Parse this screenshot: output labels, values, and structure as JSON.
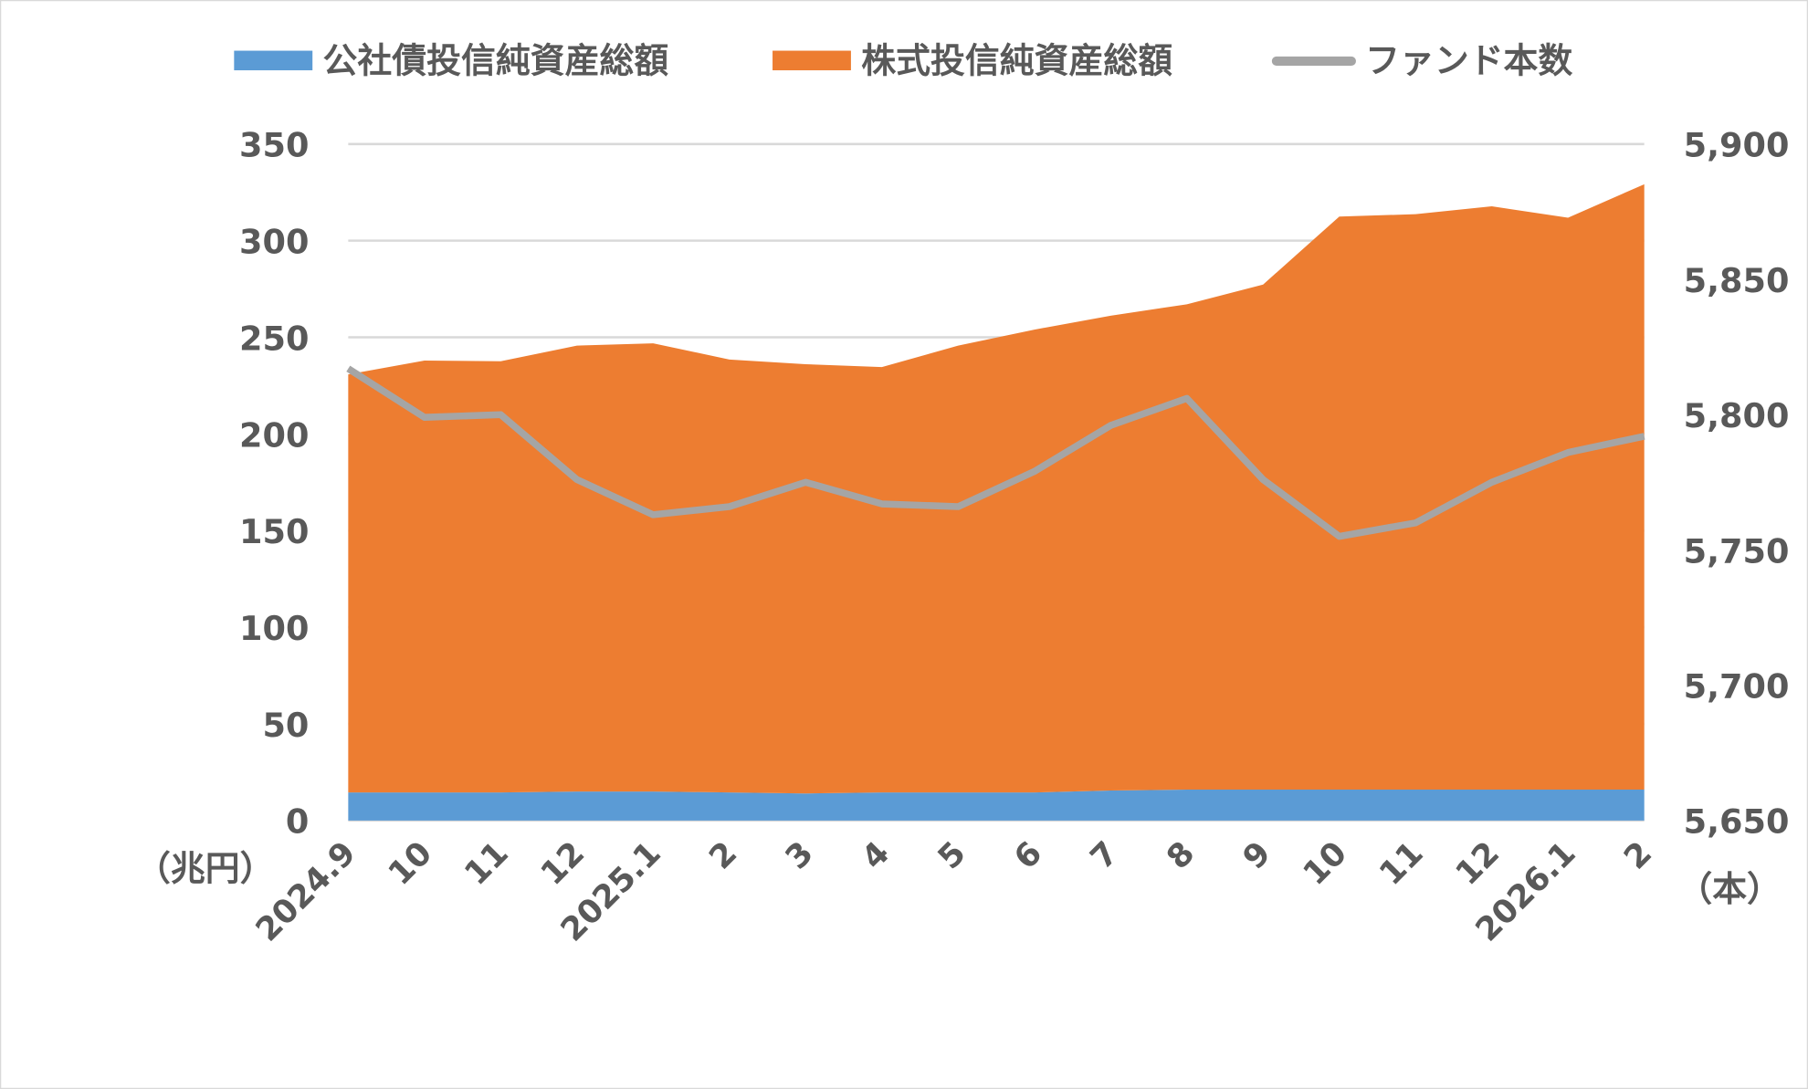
{
  "chart_data": {
    "type": "area",
    "stacked": true,
    "categories": [
      "2024.9",
      "10",
      "11",
      "12",
      "2025.1",
      "2",
      "3",
      "4",
      "5",
      "6",
      "7",
      "8",
      "9",
      "10",
      "11",
      "12",
      "2026.1",
      "2"
    ],
    "series": [
      {
        "name": "公社債投信純資産総額",
        "type": "area",
        "axis": "left",
        "color": "#5B9BD5",
        "values": [
          14.5,
          14.5,
          14.5,
          15,
          15,
          14.5,
          14,
          14.5,
          14.5,
          14.5,
          15.5,
          16,
          16,
          16,
          16,
          16,
          16,
          16
        ]
      },
      {
        "name": "株式投信純資産総額",
        "type": "area",
        "axis": "left",
        "color": "#ED7D31",
        "values": [
          216.3,
          223.5,
          223.1,
          230.7,
          231.9,
          224,
          222.1,
          220.1,
          231.2,
          239.5,
          245.7,
          251.1,
          261.3,
          296.5,
          297.7,
          301.8,
          295.9,
          313.2
        ]
      },
      {
        "name": "ファンド本数",
        "type": "line",
        "axis": "right",
        "color": "#A5A5A5",
        "values": [
          5817,
          5799,
          5800,
          5776,
          5763,
          5766,
          5775,
          5767,
          5766,
          5779,
          5796,
          5806,
          5776,
          5755,
          5760,
          5775,
          5786,
          5792
        ]
      }
    ],
    "left_axis": {
      "unit_label": "（兆円）",
      "ylim": [
        0,
        350
      ],
      "ticks": [
        "0",
        "50",
        "100",
        "150",
        "200",
        "250",
        "300",
        "350"
      ]
    },
    "right_axis": {
      "unit_label": "（本）",
      "ylim": [
        5650,
        5900
      ],
      "ticks": [
        "5,650",
        "5,700",
        "5,750",
        "5,800",
        "5,850",
        "5,900"
      ]
    },
    "grid": true,
    "legend_position": "top"
  }
}
